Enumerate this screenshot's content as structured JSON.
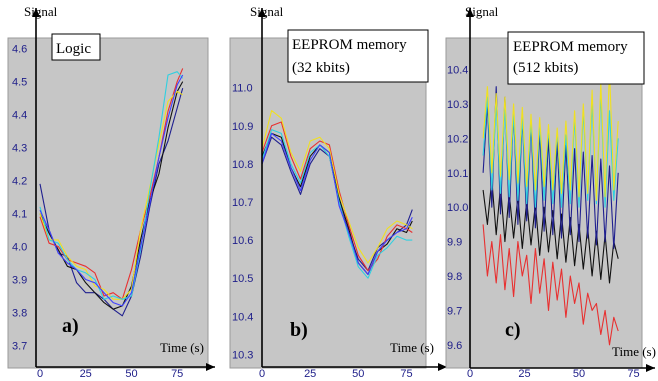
{
  "chart_data": [
    {
      "type": "line",
      "panel_label": "a)",
      "title": "Logic",
      "ylabel": "Signal",
      "xlabel": "Time (s)",
      "xlim": [
        0,
        82
      ],
      "ylim": [
        3.65,
        4.62
      ],
      "x_ticks": [
        "0",
        "25",
        "50",
        "75"
      ],
      "y_ticks": [
        "3.7",
        "3.8",
        "3.9",
        "4.0",
        "4.1",
        "4.2",
        "4.3",
        "4.4",
        "4.5",
        "4.6"
      ],
      "colors": [
        "#1f1f8f",
        "#111111",
        "#e83030",
        "#f0e020",
        "#30d0e0",
        "#4040ff"
      ],
      "series": [
        {
          "color": "#1f1f8f",
          "x": [
            0,
            5,
            10,
            15,
            20,
            25,
            30,
            35,
            40,
            45,
            50,
            55,
            60,
            65,
            70,
            75,
            78
          ],
          "values": [
            4.19,
            4.05,
            3.98,
            3.97,
            3.89,
            3.86,
            3.86,
            3.84,
            3.81,
            3.79,
            3.85,
            3.97,
            4.12,
            4.25,
            4.32,
            4.42,
            4.48
          ]
        },
        {
          "color": "#111111",
          "x": [
            0,
            5,
            10,
            15,
            20,
            25,
            30,
            35,
            40,
            45,
            50,
            55,
            60,
            65,
            70,
            75,
            78
          ],
          "values": [
            4.1,
            4.04,
            3.99,
            3.94,
            3.93,
            3.89,
            3.86,
            3.83,
            3.81,
            3.82,
            3.88,
            4.02,
            4.14,
            4.22,
            4.36,
            4.47,
            4.5
          ]
        },
        {
          "color": "#e83030",
          "x": [
            0,
            5,
            10,
            15,
            20,
            25,
            30,
            35,
            40,
            45,
            50,
            55,
            60,
            65,
            70,
            75,
            78
          ],
          "values": [
            4.09,
            4.01,
            4.0,
            3.96,
            3.95,
            3.94,
            3.92,
            3.85,
            3.86,
            3.84,
            3.93,
            4.05,
            4.15,
            4.27,
            4.41,
            4.5,
            4.54
          ]
        },
        {
          "color": "#f0e020",
          "x": [
            0,
            5,
            10,
            15,
            20,
            25,
            30,
            35,
            40,
            45,
            50,
            55,
            60,
            65,
            70,
            75,
            78
          ],
          "values": [
            4.1,
            4.02,
            4.02,
            3.97,
            3.94,
            3.93,
            3.88,
            3.87,
            3.84,
            3.84,
            3.87,
            4.05,
            4.18,
            4.31,
            4.44,
            4.47,
            4.46
          ]
        },
        {
          "color": "#30d0e0",
          "x": [
            0,
            5,
            10,
            15,
            20,
            25,
            30,
            35,
            40,
            45,
            50,
            55,
            60,
            65,
            70,
            75,
            78
          ],
          "values": [
            4.12,
            4.02,
            4.01,
            3.96,
            3.93,
            3.92,
            3.9,
            3.84,
            3.85,
            3.84,
            3.85,
            3.99,
            4.17,
            4.33,
            4.52,
            4.53,
            4.51
          ]
        },
        {
          "color": "#4040ff",
          "x": [
            0,
            5,
            10,
            15,
            20,
            25,
            30,
            35,
            40,
            45,
            50,
            55,
            60,
            65,
            70,
            75,
            78
          ],
          "values": [
            4.11,
            4.05,
            3.98,
            3.95,
            3.93,
            3.9,
            3.89,
            3.86,
            3.83,
            3.82,
            3.86,
            4.0,
            4.13,
            4.27,
            4.39,
            4.49,
            4.52
          ]
        }
      ]
    },
    {
      "type": "line",
      "panel_label": "b)",
      "title": "EEPROM memory (32 kbits)",
      "ylabel": "Signal",
      "xlabel": "Time (s)",
      "xlim": [
        0,
        82
      ],
      "ylim": [
        10.28,
        11.12
      ],
      "x_ticks": [
        "0",
        "25",
        "50",
        "75"
      ],
      "y_ticks": [
        "10.3",
        "10.4",
        "10.5",
        "10.6",
        "10.7",
        "10.8",
        "10.9",
        "11.0"
      ],
      "colors": [
        "#1f1f8f",
        "#111111",
        "#e83030",
        "#f0e020",
        "#30d0e0",
        "#4040ff"
      ],
      "series": [
        {
          "color": "#1f1f8f",
          "x": [
            0,
            5,
            10,
            15,
            20,
            25,
            30,
            35,
            40,
            45,
            50,
            55,
            60,
            65,
            70,
            75,
            78
          ],
          "values": [
            10.8,
            10.87,
            10.85,
            10.78,
            10.72,
            10.8,
            10.84,
            10.82,
            10.7,
            10.62,
            10.55,
            10.52,
            10.58,
            10.6,
            10.62,
            10.64,
            10.68
          ]
        },
        {
          "color": "#111111",
          "x": [
            0,
            5,
            10,
            15,
            20,
            25,
            30,
            35,
            40,
            45,
            50,
            55,
            60,
            65,
            70,
            75,
            78
          ],
          "values": [
            10.82,
            10.88,
            10.87,
            10.79,
            10.74,
            10.82,
            10.85,
            10.83,
            10.71,
            10.63,
            10.54,
            10.51,
            10.57,
            10.59,
            10.63,
            10.62,
            10.65
          ]
        },
        {
          "color": "#e83030",
          "x": [
            0,
            5,
            10,
            15,
            20,
            25,
            30,
            35,
            40,
            45,
            50,
            55,
            60,
            65,
            70,
            75,
            78
          ],
          "values": [
            10.83,
            10.9,
            10.91,
            10.82,
            10.76,
            10.84,
            10.86,
            10.85,
            10.73,
            10.64,
            10.56,
            10.52,
            10.55,
            10.61,
            10.64,
            10.63,
            10.62
          ]
        },
        {
          "color": "#f0e020",
          "x": [
            0,
            5,
            10,
            15,
            20,
            25,
            30,
            35,
            40,
            45,
            50,
            55,
            60,
            65,
            70,
            75,
            78
          ],
          "values": [
            10.84,
            10.94,
            10.92,
            10.83,
            10.78,
            10.86,
            10.87,
            10.84,
            10.72,
            10.65,
            10.58,
            10.54,
            10.58,
            10.63,
            10.65,
            10.64,
            10.63
          ]
        },
        {
          "color": "#30d0e0",
          "x": [
            0,
            5,
            10,
            15,
            20,
            25,
            30,
            35,
            40,
            45,
            50,
            55,
            60,
            65,
            70,
            75,
            78
          ],
          "values": [
            10.81,
            10.89,
            10.88,
            10.8,
            10.75,
            10.83,
            10.85,
            10.82,
            10.7,
            10.61,
            10.53,
            10.5,
            10.56,
            10.58,
            10.61,
            10.6,
            10.6
          ]
        },
        {
          "color": "#4040ff",
          "x": [
            0,
            5,
            10,
            15,
            20,
            25,
            30,
            35,
            40,
            45,
            50,
            55,
            60,
            65,
            70,
            75,
            78
          ],
          "values": [
            10.8,
            10.88,
            10.86,
            10.79,
            10.73,
            10.81,
            10.85,
            10.83,
            10.69,
            10.62,
            10.54,
            10.51,
            10.57,
            10.6,
            10.62,
            10.63,
            10.66
          ]
        }
      ]
    },
    {
      "type": "line",
      "panel_label": "c)",
      "title": "EEPROM memory (512 kbits)",
      "ylabel": "Signal",
      "xlabel": "Time (s)",
      "xlim": [
        0,
        78
      ],
      "ylim": [
        9.55,
        10.48
      ],
      "x_ticks": [
        "0",
        "25",
        "50",
        "75"
      ],
      "y_ticks": [
        "9.6",
        "9.7",
        "9.8",
        "9.9",
        "10.0",
        "10.1",
        "10.2",
        "10.3",
        "10.4"
      ],
      "colors": [
        "#e83030",
        "#111111",
        "#1f1f8f",
        "#30d0e0",
        "#f0e020"
      ],
      "series": [
        {
          "color": "#e83030",
          "x": [
            6,
            8,
            10,
            12,
            14,
            16,
            18,
            20,
            22,
            24,
            26,
            28,
            30,
            32,
            34,
            36,
            38,
            40,
            42,
            44,
            46,
            48,
            50,
            52,
            54,
            56,
            58,
            60,
            62,
            64,
            66,
            68
          ],
          "values": [
            9.95,
            9.8,
            9.9,
            9.78,
            9.92,
            9.76,
            9.88,
            9.74,
            9.9,
            9.8,
            9.86,
            9.72,
            9.88,
            9.75,
            9.85,
            9.7,
            9.84,
            9.73,
            9.82,
            9.68,
            9.8,
            9.72,
            9.78,
            9.66,
            9.75,
            9.7,
            9.72,
            9.63,
            9.7,
            9.6,
            9.68,
            9.64
          ]
        },
        {
          "color": "#111111",
          "x": [
            6,
            8,
            10,
            12,
            14,
            16,
            18,
            20,
            22,
            24,
            26,
            28,
            30,
            32,
            34,
            36,
            38,
            40,
            42,
            44,
            46,
            48,
            50,
            52,
            54,
            56,
            58,
            60,
            62,
            64,
            66,
            68
          ],
          "values": [
            10.05,
            9.95,
            10.08,
            9.92,
            10.06,
            9.9,
            10.04,
            9.91,
            10.03,
            9.88,
            10.02,
            9.89,
            10.01,
            9.86,
            10.0,
            9.87,
            9.99,
            9.85,
            9.98,
            9.84,
            9.97,
            9.83,
            9.95,
            9.82,
            9.94,
            9.8,
            9.93,
            9.79,
            9.92,
            9.78,
            9.9,
            9.85
          ]
        },
        {
          "color": "#1f1f8f",
          "x": [
            6,
            8,
            10,
            12,
            14,
            16,
            18,
            20,
            22,
            24,
            26,
            28,
            30,
            32,
            34,
            36,
            38,
            40,
            42,
            44,
            46,
            48,
            50,
            52,
            54,
            56,
            58,
            60,
            62,
            64,
            66,
            68
          ],
          "values": [
            10.1,
            10.3,
            10.0,
            10.35,
            9.98,
            10.32,
            9.97,
            10.28,
            9.95,
            10.26,
            9.96,
            10.24,
            9.94,
            10.22,
            9.93,
            10.2,
            9.92,
            10.19,
            9.91,
            10.18,
            9.92,
            10.17,
            9.9,
            10.16,
            9.91,
            10.15,
            9.89,
            10.14,
            9.9,
            10.12,
            9.88,
            10.1
          ]
        },
        {
          "color": "#30d0e0",
          "x": [
            6,
            8,
            10,
            12,
            14,
            16,
            18,
            20,
            22,
            24,
            26,
            28,
            30,
            32,
            34,
            36,
            38,
            40,
            42,
            44,
            46,
            48,
            50,
            52,
            54,
            56,
            58,
            60,
            62,
            64,
            66,
            68
          ],
          "values": [
            10.15,
            10.32,
            10.05,
            10.3,
            10.04,
            10.29,
            10.03,
            10.27,
            10.02,
            10.26,
            10.01,
            10.25,
            10.0,
            10.24,
            10.02,
            10.23,
            10.01,
            10.22,
            10.0,
            10.21,
            10.01,
            10.26,
            10.0,
            10.28,
            10.02,
            10.3,
            10.01,
            10.33,
            10.0,
            10.28,
            10.02,
            10.2
          ]
        },
        {
          "color": "#f0e020",
          "x": [
            6,
            8,
            10,
            12,
            14,
            16,
            18,
            20,
            22,
            24,
            26,
            28,
            30,
            32,
            34,
            36,
            38,
            40,
            42,
            44,
            46,
            48,
            50,
            52,
            54,
            56,
            58,
            60,
            62,
            64,
            66,
            68
          ],
          "values": [
            10.2,
            10.35,
            10.1,
            10.33,
            10.09,
            10.32,
            10.08,
            10.3,
            10.07,
            10.29,
            10.06,
            10.27,
            10.05,
            10.26,
            10.06,
            10.24,
            10.05,
            10.23,
            10.04,
            10.25,
            10.05,
            10.28,
            10.03,
            10.3,
            10.04,
            10.34,
            10.02,
            10.36,
            10.03,
            10.4,
            10.05,
            10.25
          ]
        }
      ]
    }
  ]
}
